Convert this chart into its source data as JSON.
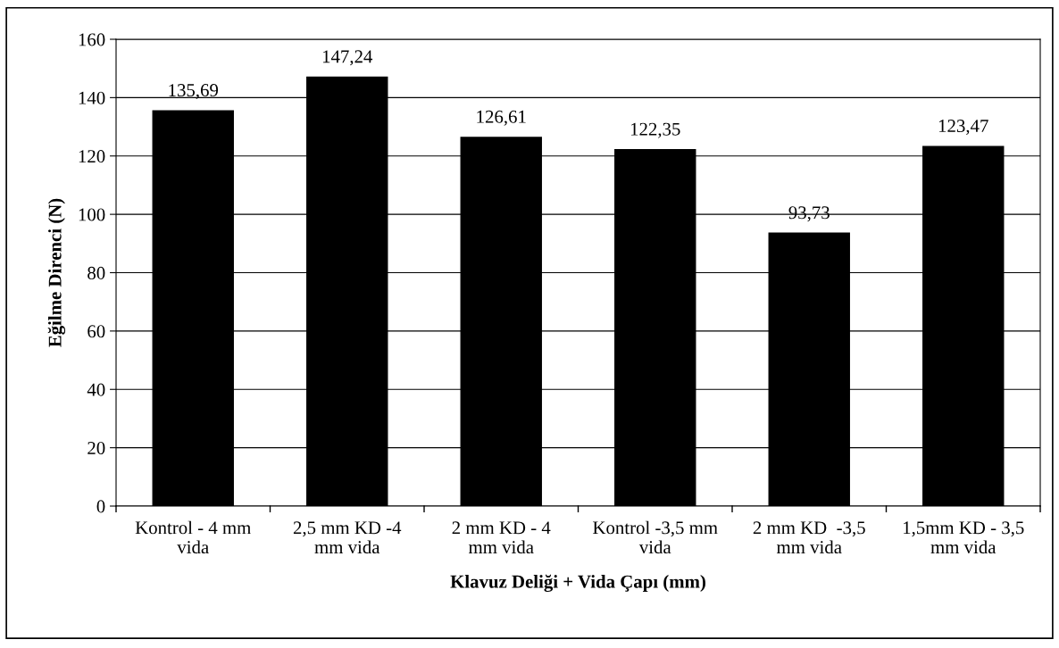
{
  "chart_data": {
    "type": "bar",
    "xlabel": "Klavuz Deliği + Vida Çapı (mm)",
    "ylabel": "Eğilme Direnci (N)",
    "categories": [
      "Kontrol - 4 mm\nvida",
      "2,5 mm KD -4\nmm vida",
      "2 mm KD - 4\nmm vida",
      "Kontrol -3,5 mm\nvida",
      "2 mm KD  -3,5\nmm vida",
      "1,5mm KD - 3,5\nmm vida"
    ],
    "values": [
      135.69,
      147.24,
      126.61,
      122.35,
      93.73,
      123.47
    ],
    "value_labels": [
      "135,69",
      "147,24",
      "126,61",
      "122,35",
      "93,73",
      "123,47"
    ],
    "color": "#000000",
    "ylim": [
      0,
      160
    ],
    "yticks": [
      0,
      20,
      40,
      60,
      80,
      100,
      120,
      140,
      160
    ],
    "grid": "y",
    "legend": false
  }
}
